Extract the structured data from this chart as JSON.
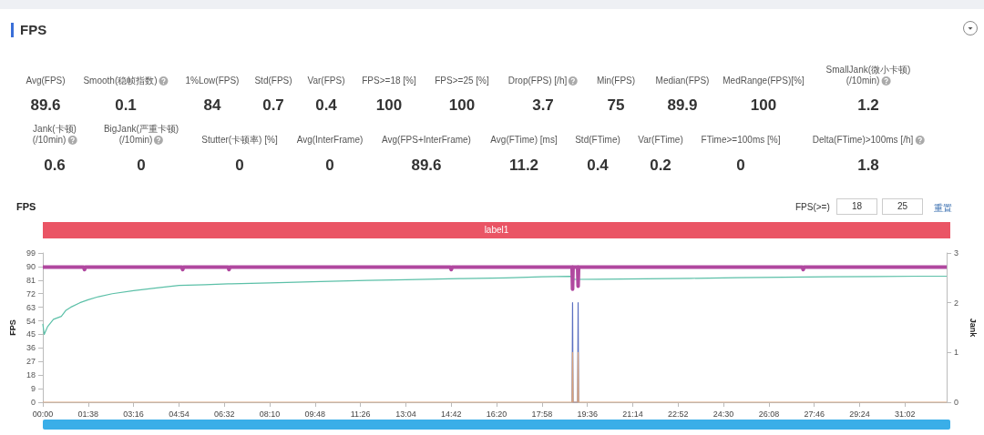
{
  "chart_data": [
    {
      "type": "other",
      "title": "FPS",
      "annotations": [
        "Avg(FPS)",
        "89.6",
        "Smooth(稳帧指数)",
        "0.1",
        "1%Low(FPS)",
        "84",
        "Std(FPS)",
        "0.7",
        "Var(FPS)",
        "0.4",
        "FPS>=18 [%]",
        "100",
        "FPS>=25 [%]",
        "100",
        "Drop(FPS) [/h]",
        "3.7",
        "Min(FPS)",
        "75",
        "Median(FPS)",
        "89.9",
        "MedRange(FPS)[%]",
        "100",
        "SmallJank(微小卡顿)\n(/10min)",
        "1.2",
        "Jank(卡顿)\n(/10min)",
        "0.6",
        "BigJank(严重卡顿)\n(/10min)",
        "0",
        "Stutter(卡顿率) [%]",
        "0",
        "Avg(InterFrame)",
        "0",
        "Avg(FPS+InterFrame)",
        "89.6",
        "Avg(FTime) [ms]",
        "11.2",
        "Std(FTime)",
        "0.4",
        "Var(FTime)",
        "0.2",
        "FTime>=100ms [%]",
        "0",
        "Delta(FTime)>100ms [/h]",
        "1.8"
      ]
    },
    {
      "type": "line",
      "title": "FPS",
      "ylabel": "FPS",
      "y2label": "Jank",
      "annotations": [
        "label1",
        "FPS(>=)",
        "18",
        "25",
        "重置"
      ],
      "xlim": [
        0,
        1952
      ],
      "xticks": [
        {
          "value": 0,
          "label": "00:00"
        },
        {
          "value": 98,
          "label": "01:38"
        },
        {
          "value": 196,
          "label": "03:16"
        },
        {
          "value": 294,
          "label": "04:54"
        },
        {
          "value": 392,
          "label": "06:32"
        },
        {
          "value": 490,
          "label": "08:10"
        },
        {
          "value": 588,
          "label": "09:48"
        },
        {
          "value": 686,
          "label": "11:26"
        },
        {
          "value": 784,
          "label": "13:04"
        },
        {
          "value": 882,
          "label": "14:42"
        },
        {
          "value": 980,
          "label": "16:20"
        },
        {
          "value": 1078,
          "label": "17:58"
        },
        {
          "value": 1176,
          "label": "19:36"
        },
        {
          "value": 1274,
          "label": "21:14"
        },
        {
          "value": 1372,
          "label": "22:52"
        },
        {
          "value": 1470,
          "label": "24:30"
        },
        {
          "value": 1568,
          "label": "26:08"
        },
        {
          "value": 1666,
          "label": "27:46"
        },
        {
          "value": 1764,
          "label": "29:24"
        },
        {
          "value": 1862,
          "label": "31:02"
        }
      ],
      "ylim": [
        0,
        99
      ],
      "yticks": [
        0,
        9,
        18,
        27,
        36,
        45,
        54,
        63,
        72,
        81,
        90,
        99
      ],
      "y2lim": [
        0,
        3
      ],
      "y2ticks": [
        0,
        1,
        2,
        3
      ],
      "grid": false,
      "series": [
        {
          "color": "#5cc0a8",
          "x": [
            0,
            3,
            10,
            23,
            40,
            50,
            60,
            80,
            98,
            120,
            150,
            196,
            250,
            294,
            350,
            400,
            490,
            600,
            700,
            784,
            900,
            1000,
            1078,
            1140,
            1148,
            1200,
            1300,
            1400,
            1500,
            1600,
            1700,
            1800,
            1900,
            1952
          ],
          "values": [
            52,
            45,
            50,
            55,
            57,
            61,
            63,
            66,
            68,
            70,
            72,
            74,
            76,
            77.5,
            78,
            78.5,
            79.2,
            80,
            80.8,
            81.3,
            82,
            82.5,
            83.2,
            83.5,
            81.5,
            81.6,
            81.9,
            82.2,
            82.6,
            82.9,
            83.2,
            83.4,
            83.6,
            83.6
          ]
        },
        {
          "color": "#b0489f",
          "x": [
            0,
            30,
            60,
            88,
            90,
            92,
            120,
            160,
            200,
            240,
            280,
            300,
            302,
            304,
            340,
            380,
            400,
            402,
            404,
            440,
            480,
            520,
            560,
            600,
            640,
            680,
            720,
            760,
            800,
            840,
            880,
            882,
            884,
            920,
            960,
            1000,
            1040,
            1080,
            1100,
            1120,
            1143,
            1144,
            1145,
            1155,
            1156,
            1157,
            1180,
            1220,
            1260,
            1300,
            1340,
            1380,
            1420,
            1460,
            1500,
            1540,
            1580,
            1620,
            1640,
            1642,
            1644,
            1680,
            1720,
            1760,
            1800,
            1840,
            1880,
            1920,
            1952
          ],
          "values": [
            89.6,
            89.7,
            89.6,
            89.6,
            88,
            89.6,
            89.7,
            89.6,
            89.7,
            89.6,
            89.7,
            89.6,
            88,
            89.6,
            89.7,
            89.6,
            89.6,
            88,
            89.6,
            89.7,
            89.6,
            89.7,
            89.6,
            89.7,
            89.6,
            89.7,
            89.6,
            89.7,
            89.6,
            89.7,
            89.6,
            88,
            89.6,
            89.7,
            89.6,
            89.7,
            89.6,
            89.7,
            89.6,
            89.7,
            89.6,
            75,
            89.6,
            89.6,
            77,
            89.6,
            89.7,
            89.6,
            89.7,
            89.6,
            89.7,
            89.6,
            89.7,
            89.6,
            89.7,
            89.6,
            89.7,
            89.6,
            89.6,
            88,
            89.6,
            89.7,
            89.6,
            89.7,
            89.6,
            89.7,
            89.6,
            89.7,
            89.6
          ]
        },
        {
          "color": "#5a6fc0",
          "axis": "y2",
          "x": [
            1143,
            1144,
            1145,
            1155,
            1156,
            1157
          ],
          "values": [
            0,
            2,
            0,
            0,
            2,
            0
          ]
        },
        {
          "color": "#d9a27a",
          "axis": "y2",
          "x": [
            0,
            1143,
            1144,
            1145,
            1155,
            1156,
            1157,
            1952
          ],
          "values": [
            0,
            0,
            1,
            0,
            0,
            1,
            0,
            0
          ]
        }
      ]
    }
  ]
}
